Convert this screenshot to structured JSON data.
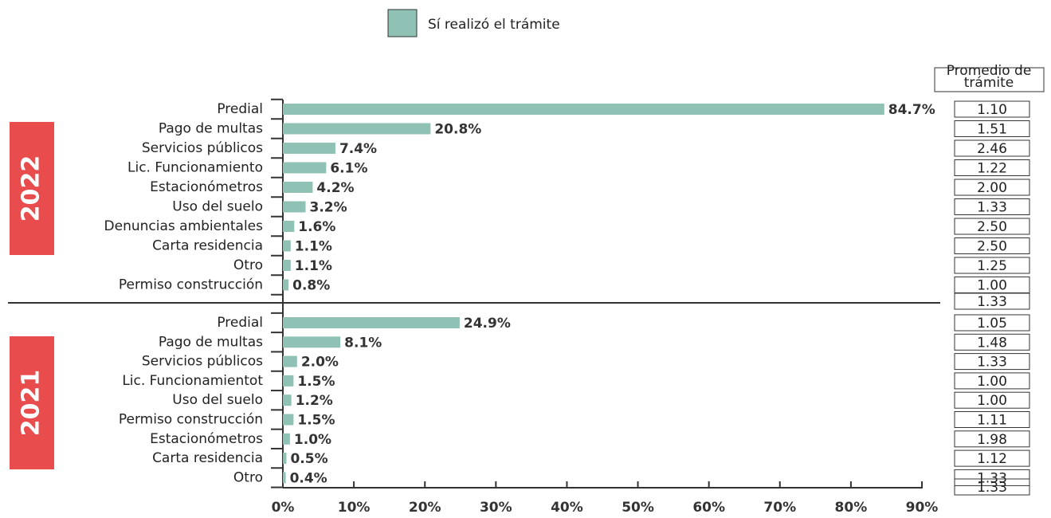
{
  "chart_data": {
    "type": "bar",
    "orientation": "horizontal",
    "legend_label": "Sí realizó el trámite",
    "color": "#8fc1b5",
    "averages_title": [
      "Promedio de",
      "trámite"
    ],
    "xlim": [
      0,
      90
    ],
    "xticks": [
      {
        "value": 0,
        "label": "0%"
      },
      {
        "value": 10,
        "label": "10%"
      },
      {
        "value": 20,
        "label": "20%"
      },
      {
        "value": 30,
        "label": "30%"
      },
      {
        "value": 40,
        "label": "40%"
      },
      {
        "value": 50,
        "label": "50%"
      },
      {
        "value": 60,
        "label": "60%"
      },
      {
        "value": 70,
        "label": "70%"
      },
      {
        "value": 80,
        "label": "80%"
      },
      {
        "value": 90,
        "label": "90%"
      }
    ],
    "groups": [
      {
        "name": "2022",
        "categories": [
          "Predial",
          "Pago de multas",
          "Servicios públicos",
          "Lic. Funcionamiento",
          "Estacionómetros",
          "Uso del suelo",
          "Denuncias ambientales",
          "Carta residencia",
          "Otro",
          "Permiso construcción"
        ],
        "values": [
          84.7,
          20.8,
          7.4,
          6.1,
          4.2,
          3.2,
          1.6,
          1.1,
          1.1,
          0.8
        ],
        "value_labels": [
          "84.7%",
          "20.8%",
          "7.4%",
          "6.1%",
          "4.2%",
          "3.2%",
          "1.6%",
          "1.1%",
          "1.1%",
          "0.8%"
        ],
        "averages": [
          "1.10",
          "1.51",
          "2.46",
          "1.22",
          "2.00",
          "1.33",
          "2.50",
          "2.50",
          "1.25",
          "1.00"
        ],
        "average_total": "1.33"
      },
      {
        "name": "2021",
        "categories": [
          "Predial",
          "Pago de multas",
          "Servicios públicos",
          "Lic. Funcionamientot",
          "Uso del suelo",
          "Permiso construcción",
          "Estacionómetros",
          "Carta residencia",
          "Otro"
        ],
        "values": [
          24.9,
          8.1,
          2.0,
          1.5,
          1.2,
          1.5,
          1.0,
          0.5,
          0.4
        ],
        "value_labels": [
          "24.9%",
          "8.1%",
          "2.0%",
          "1.5%",
          "1.2%",
          "1.5%",
          "1.0%",
          "0.5%",
          "0.4%"
        ],
        "averages": [
          "1.05",
          "1.48",
          "1.33",
          "1.00",
          "1.00",
          "1.11",
          "1.98",
          "1.12",
          "1.33"
        ],
        "average_total": null
      }
    ],
    "average_total_2021": "1.33"
  }
}
